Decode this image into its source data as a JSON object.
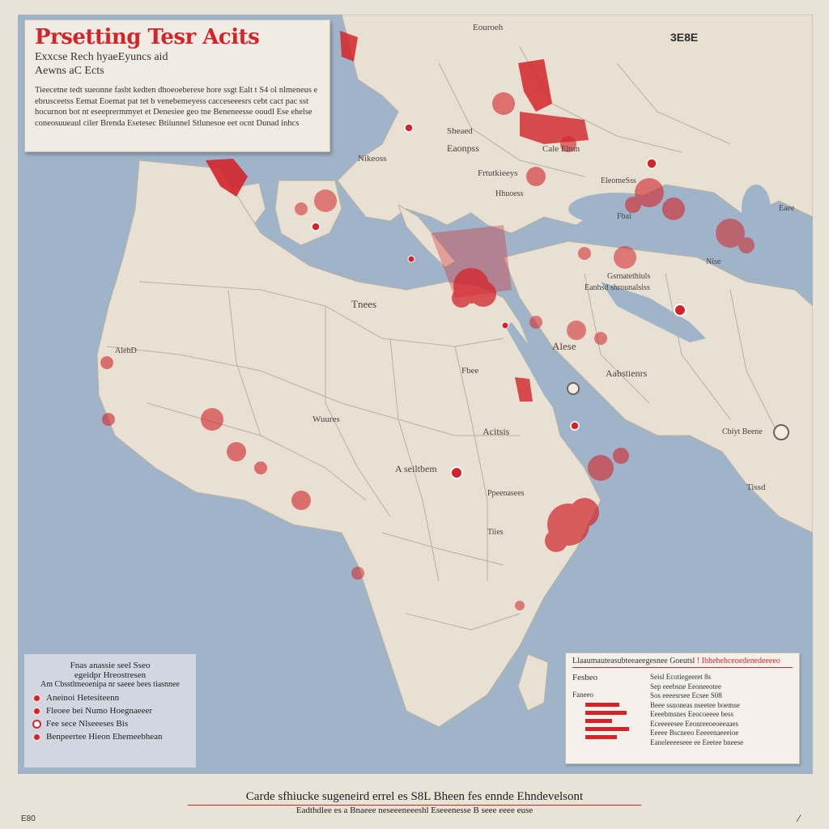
{
  "title": "Prsetting Tesr Acits",
  "subtitle": [
    "Exxcse Rech hyaeEyuncs aid",
    "Aewns aC Ects"
  ],
  "description": "Tieecetne tedt sueonne fasbt kedten dhoeoeberese hore ssgt Ealt t S4 ol nlmeneus e ebrusceetss Eemat Eoemat pat tet b venebemeyess cacceseeesrs cebt cact pac sst hocurnon bot nt eseeprermmyet et Denesiee geo tne Beneneesse ooudl Ese ehelse coneosuueaul ciler Brenda Esetesec Btiiunnel Stlunesoe eet ocnt Dunad inhcs",
  "corner_label": "3E8E",
  "map_labels": [
    "Eouroeh",
    "Sheaed",
    "Eaonpss",
    "Cale Ehun",
    "Frtutkieeys",
    "Nikeoss",
    "EleomeSss",
    "Hhuoess",
    "Fbai",
    "Tnees",
    "Gsrnatethiuls",
    "Eanhsd shrounalsiss",
    "Alese",
    "Aabstienrs",
    "AlehD",
    "Wuures",
    "Acitsis",
    "A seiltbem",
    "Fbee",
    "Cbiyt Beene",
    "Ppeenasees",
    "Tiies",
    "Nise",
    "Tissd",
    "Eaee"
  ],
  "legend_left": {
    "header": [
      "Fnas anassie seel Sseo",
      "egeidpr Hreostresen",
      "Am Cbsstlmeoenipa nr saeee bees tiasnnee"
    ],
    "items": [
      "Aneinoi Hetesiteenn",
      "Fleoee bei Numo Hoegnaeeer",
      "Fee sece Nlseeeses Bis",
      "Benpeertee Hieon Ehemeebhean"
    ]
  },
  "legend_right": {
    "header": "Llaaumauteasubteeaeegesnee Goeutsl",
    "header_accent": "! Ibhehehceoedenedeeeeo",
    "side_title": "Fesbeo",
    "side_sub": "Faneeo",
    "bars": [
      0.7,
      0.85,
      0.55,
      0.9,
      0.65
    ],
    "rows": [
      "Seisl  Ecotiegeeret 8s",
      "Sep eeebsne  Eeoneeotee",
      "Sos eeeesrsee  Ecsee S08",
      "Beee ssnoneas  nseetee boemse",
      "Eeeebmsnes  Eeocoeeee bess",
      "Eceeeeesee  Eeonreeoeoeeaaes",
      "Eeeee Bscneeo  Eeeeenaeeeioe",
      "Eaneleeeeseee ee Eeetee bneese"
    ]
  },
  "footer": [
    "Carde sfhiucke sugeneird errel es S8L Bheen fes ennde Ehndevelsont",
    "Eadthdlee es a  Bnaeee  neseeeneeeshl  Eseeenesse  B seee eeee euse"
  ],
  "corner_code": "E80",
  "colors": {
    "accent": "#d3242a",
    "water": "#9fb4c8",
    "land": "#e7e0d3",
    "paper": "#f1ece3"
  }
}
